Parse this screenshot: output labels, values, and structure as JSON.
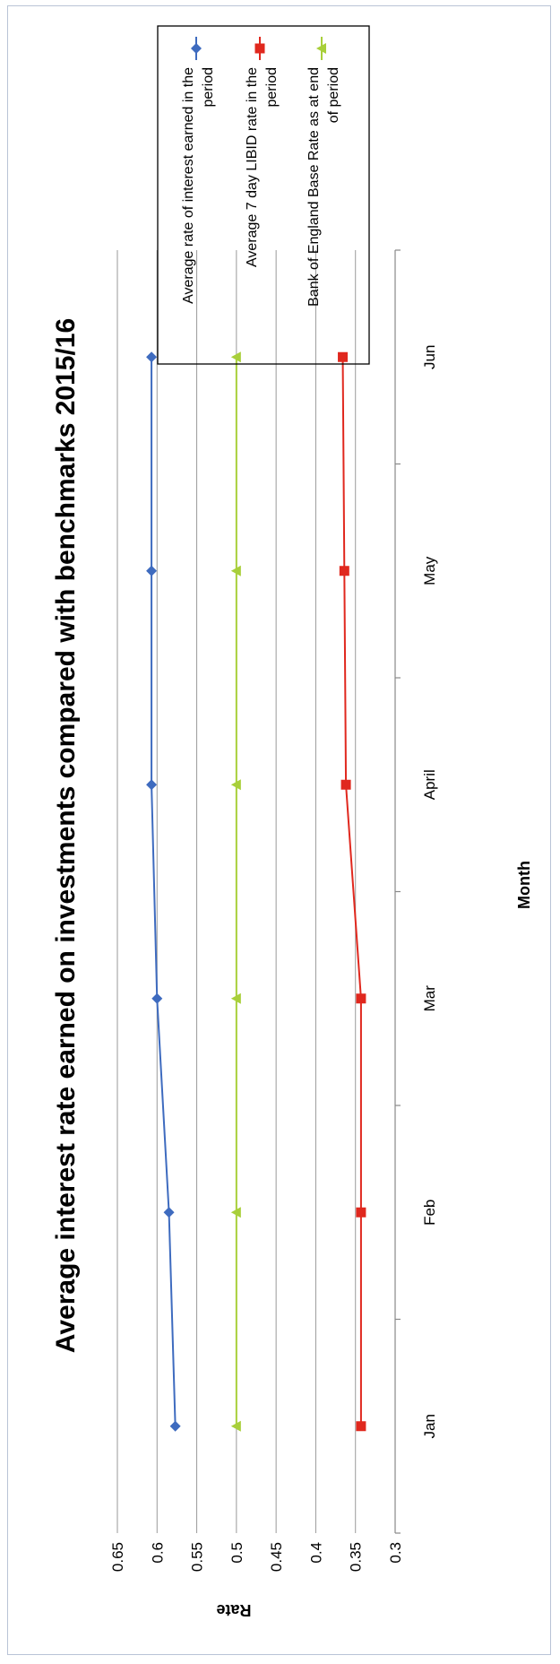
{
  "chart_data": {
    "type": "line",
    "title": "Average interest rate earned on investments compared with benchmarks 2015/16",
    "xlabel": "Month",
    "ylabel": "Rate",
    "categories": [
      "Jan",
      "Feb",
      "Mar",
      "April",
      "May",
      "Jun"
    ],
    "ylim": [
      0.3,
      0.65
    ],
    "yticks": [
      "0.65",
      "0.6",
      "0.55",
      "0.5",
      "0.45",
      "0.4",
      "0.35",
      "0.3"
    ],
    "grid": true,
    "legend_position": "right",
    "series": [
      {
        "name": "Average rate of interest earned in the period",
        "color": "#3e6bbf",
        "marker": "diamond",
        "values": [
          0.577,
          0.585,
          0.6,
          0.607,
          0.607,
          0.607
        ]
      },
      {
        "name": "Average 7 day LIBID rate in the period",
        "color": "#e0281e",
        "marker": "square",
        "values": [
          0.343,
          0.343,
          0.343,
          0.362,
          0.364,
          0.366
        ]
      },
      {
        "name": "Bank of England Base Rate as at end of period",
        "color": "#a8cf3a",
        "marker": "triangle",
        "values": [
          0.5,
          0.5,
          0.5,
          0.5,
          0.5,
          0.5
        ]
      }
    ]
  }
}
